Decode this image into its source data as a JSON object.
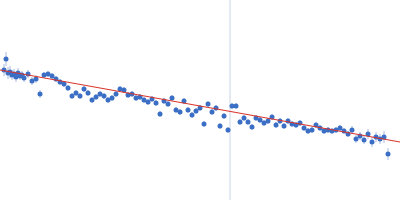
{
  "chart_data": {
    "type": "scatter",
    "tick_labels": false,
    "grid": false,
    "xlim": [
      0,
      400
    ],
    "ylim": [
      0,
      200
    ],
    "xticks": [],
    "yticks": [],
    "vertical_line": 230,
    "vertical_line_color": "#c9d5e8",
    "series": [
      {
        "type": "scatter",
        "marker": "circle",
        "color": "#3b6fc6",
        "x": [
          4,
          6,
          8,
          10,
          12,
          14,
          16,
          18,
          20,
          22,
          24,
          28,
          32,
          36,
          40,
          44,
          48,
          52,
          56,
          60,
          64,
          68,
          72,
          76,
          80,
          84,
          88,
          92,
          96,
          100,
          104,
          108,
          112,
          116,
          120,
          124,
          128,
          132,
          136,
          140,
          144,
          148,
          152,
          156,
          160,
          164,
          168,
          172,
          176,
          180,
          184,
          188,
          192,
          196,
          200,
          204,
          208,
          212,
          216,
          220,
          224,
          228,
          232,
          236,
          240,
          244,
          248,
          252,
          256,
          260,
          264,
          268,
          272,
          276,
          280,
          284,
          288,
          292,
          296,
          300,
          304,
          308,
          312,
          316,
          320,
          324,
          328,
          332,
          336,
          340,
          344,
          348,
          352,
          356,
          360,
          364,
          368,
          372,
          376,
          380,
          384,
          388
        ],
        "values": [
          130,
          141,
          127,
          128,
          125,
          126,
          123,
          127,
          124,
          125,
          122,
          126,
          119,
          121,
          106,
          125,
          126,
          124,
          121,
          118,
          116,
          112,
          104,
          107,
          104,
          111,
          107,
          100,
          103,
          106,
          104,
          100,
          102,
          106,
          111,
          110,
          105,
          106,
          102,
          103,
          100,
          98,
          101,
          97,
          86,
          99,
          96,
          102,
          90,
          88,
          99,
          90,
          85,
          89,
          92,
          76,
          96,
          88,
          92,
          74,
          84,
          70,
          94,
          94,
          78,
          82,
          78,
          73,
          82,
          80,
          77,
          79,
          83,
          75,
          79,
          74,
          79,
          76,
          75,
          77,
          72,
          69,
          70,
          75,
          72,
          69,
          70,
          69,
          70,
          72,
          69,
          66,
          70,
          61,
          64,
          60,
          66,
          58,
          63,
          61,
          63,
          46
        ],
        "error": [
          6,
          7,
          6,
          6,
          5,
          5,
          5,
          5,
          4,
          4,
          4,
          4,
          4,
          4,
          4,
          3,
          3,
          3,
          3,
          3,
          3,
          3,
          3,
          3,
          3,
          3,
          3,
          3,
          3,
          3,
          3,
          3,
          3,
          3,
          3,
          3,
          3,
          3,
          3,
          3,
          3,
          3,
          3,
          3,
          3,
          3,
          3,
          3,
          3,
          3,
          3,
          3,
          3,
          3,
          3,
          3,
          3,
          3,
          3,
          3,
          3,
          3,
          3,
          3,
          3,
          3,
          3,
          3,
          3,
          3,
          3,
          3,
          3,
          3,
          3,
          3,
          3,
          3,
          3,
          3,
          3,
          3,
          3,
          3,
          3,
          3,
          3,
          3,
          3,
          3,
          3,
          3,
          4,
          4,
          4,
          4,
          5,
          5,
          5,
          5,
          6,
          6
        ]
      },
      {
        "type": "line",
        "line_style": "solid",
        "color": "#d9342b",
        "x": [
          0,
          400
        ],
        "values": [
          130,
          58
        ]
      }
    ]
  }
}
